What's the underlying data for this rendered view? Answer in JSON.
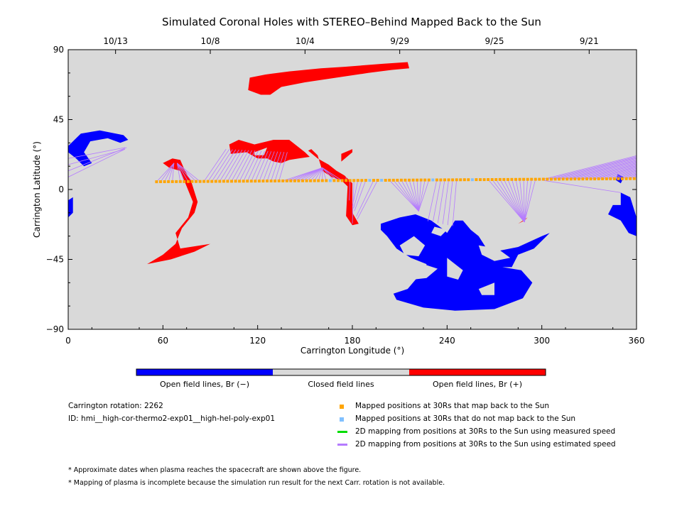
{
  "chart_data": {
    "type": "scatter",
    "title": "Simulated Coronal Holes with STEREO–Behind Mapped Back to the Sun",
    "xlabel": "Carrington Longitude (°)",
    "ylabel": "Carrington Latitude (°)",
    "xlim": [
      0,
      360
    ],
    "ylim": [
      -90,
      90
    ],
    "x_ticks": [
      0,
      60,
      120,
      180,
      240,
      300,
      360
    ],
    "y_ticks": [
      90,
      45,
      0,
      -45,
      -90
    ],
    "top_axis": {
      "dates": [
        "10/13",
        "10/8",
        "10/4",
        "9/29",
        "9/25",
        "9/21"
      ],
      "longitudes": [
        30,
        90,
        150,
        210,
        270,
        330
      ]
    },
    "colors": {
      "background": "#d9d9d9",
      "negative": "#0000ff",
      "positive": "#ff0000",
      "mapped": "#ffa500",
      "unmapped": "#80c0ff",
      "measured": "#00dd00",
      "estimated": "#b57bff"
    },
    "regions": {
      "positive": [
        [
          [
            115,
            72
          ],
          [
            125,
            74
          ],
          [
            140,
            76
          ],
          [
            160,
            78
          ],
          [
            175,
            79
          ],
          [
            200,
            81
          ],
          [
            215,
            82
          ],
          [
            216,
            78
          ],
          [
            205,
            77
          ],
          [
            190,
            75
          ],
          [
            170,
            72
          ],
          [
            150,
            69
          ],
          [
            135,
            66
          ],
          [
            128,
            61
          ],
          [
            122,
            61
          ],
          [
            114,
            64
          ]
        ],
        [
          [
            103,
            23
          ],
          [
            102,
            29
          ],
          [
            108,
            32
          ],
          [
            118,
            29
          ],
          [
            130,
            32
          ],
          [
            140,
            32
          ],
          [
            150,
            24
          ],
          [
            153,
            21
          ],
          [
            146,
            20
          ],
          [
            140,
            19
          ],
          [
            135,
            17
          ],
          [
            130,
            18
          ],
          [
            126,
            20
          ],
          [
            120,
            20
          ],
          [
            113,
            24
          ]
        ],
        [
          [
            152,
            25
          ],
          [
            158,
            20
          ],
          [
            165,
            16
          ],
          [
            170,
            12
          ],
          [
            175,
            9
          ],
          [
            180,
            4
          ],
          [
            180,
            -15
          ],
          [
            184,
            -22
          ],
          [
            180,
            -23
          ],
          [
            176,
            -17
          ],
          [
            177,
            2
          ],
          [
            173,
            6
          ],
          [
            167,
            8
          ],
          [
            161,
            12
          ],
          [
            158,
            22
          ],
          [
            154,
            26
          ]
        ],
        [
          [
            173,
            18
          ],
          [
            180,
            24
          ],
          [
            180,
            26
          ],
          [
            173,
            23
          ]
        ],
        [
          [
            60,
            17
          ],
          [
            66,
            20
          ],
          [
            71,
            19
          ],
          [
            74,
            12
          ],
          [
            78,
            5
          ],
          [
            82,
            -8
          ],
          [
            80,
            -15
          ],
          [
            72,
            -25
          ],
          [
            68,
            -35
          ],
          [
            60,
            -42
          ],
          [
            50,
            -48
          ],
          [
            65,
            -45
          ],
          [
            80,
            -40
          ],
          [
            90,
            -35
          ],
          [
            71,
            -38
          ],
          [
            68,
            -28
          ],
          [
            76,
            -18
          ],
          [
            79,
            -8
          ],
          [
            75,
            2
          ],
          [
            71,
            12
          ],
          [
            64,
            14
          ]
        ],
        [
          [
            285,
            -22
          ],
          [
            291,
            -18
          ],
          [
            289,
            -20
          ]
        ]
      ],
      "negative": [
        [
          [
            0,
            28
          ],
          [
            8,
            36
          ],
          [
            20,
            38
          ],
          [
            35,
            35
          ],
          [
            38,
            32
          ],
          [
            33,
            30
          ],
          [
            25,
            33
          ],
          [
            14,
            31
          ],
          [
            10,
            24
          ],
          [
            15,
            17
          ],
          [
            10,
            15
          ],
          [
            5,
            20
          ],
          [
            0,
            24
          ]
        ],
        [
          [
            0,
            -7
          ],
          [
            3,
            -5
          ],
          [
            3,
            -15
          ],
          [
            0,
            -18
          ]
        ],
        [
          [
            198,
            -22
          ],
          [
            210,
            -18
          ],
          [
            220,
            -16
          ],
          [
            230,
            -20
          ],
          [
            238,
            -26
          ],
          [
            240,
            -28
          ],
          [
            245,
            -20
          ],
          [
            250,
            -20
          ],
          [
            255,
            -26
          ],
          [
            260,
            -30
          ],
          [
            265,
            -38
          ],
          [
            270,
            -40
          ],
          [
            285,
            -37
          ],
          [
            300,
            -30
          ],
          [
            305,
            -28
          ],
          [
            295,
            -38
          ],
          [
            285,
            -42
          ],
          [
            281,
            -50
          ],
          [
            275,
            -50
          ],
          [
            287,
            -52
          ],
          [
            294,
            -60
          ],
          [
            288,
            -70
          ],
          [
            270,
            -77
          ],
          [
            245,
            -78
          ],
          [
            225,
            -76
          ],
          [
            208,
            -71
          ],
          [
            206,
            -67
          ],
          [
            215,
            -64
          ],
          [
            220,
            -58
          ],
          [
            226,
            -54
          ],
          [
            227,
            -48
          ],
          [
            217,
            -44
          ],
          [
            208,
            -38
          ],
          [
            202,
            -30
          ],
          [
            198,
            -26
          ]
        ],
        [
          [
            350,
            -10
          ],
          [
            345,
            -10
          ],
          [
            342,
            -16
          ],
          [
            350,
            -20
          ],
          [
            355,
            -28
          ],
          [
            360,
            -30
          ],
          [
            360,
            -18
          ],
          [
            356,
            -5
          ],
          [
            350,
            -2
          ]
        ],
        [
          [
            348,
            10
          ],
          [
            352,
            8
          ],
          [
            350,
            4
          ],
          [
            347,
            6
          ]
        ]
      ]
    },
    "holes": {
      "negative": [
        [
          [
            210,
            -36
          ],
          [
            219,
            -30
          ],
          [
            226,
            -36
          ],
          [
            222,
            -43
          ],
          [
            213,
            -42
          ]
        ],
        [
          [
            240,
            -44
          ],
          [
            250,
            -52
          ],
          [
            247,
            -58
          ],
          [
            240,
            -56
          ]
        ],
        [
          [
            225,
            -48
          ],
          [
            234,
            -51
          ],
          [
            227,
            -57
          ],
          [
            218,
            -58
          ],
          [
            216,
            -52
          ]
        ],
        [
          [
            260,
            -36
          ],
          [
            272,
            -38
          ],
          [
            280,
            -44
          ],
          [
            270,
            -46
          ],
          [
            262,
            -42
          ]
        ],
        [
          [
            260,
            -64
          ],
          [
            270,
            -60
          ],
          [
            270,
            -68
          ],
          [
            262,
            -68
          ]
        ],
        [
          [
            232,
            -24
          ],
          [
            240,
            -26
          ],
          [
            236,
            -30
          ],
          [
            230,
            -28
          ]
        ]
      ],
      "positive": [
        [
          [
            118,
            24
          ],
          [
            126,
            27
          ],
          [
            124,
            22
          ],
          [
            118,
            22
          ]
        ]
      ]
    },
    "mapping": {
      "lon_start": 56,
      "lon_end": 360,
      "step": 2.5,
      "lat_start": 5,
      "lat_end": 7,
      "unmapped_lons": [
        167,
        190,
        198,
        230,
        255
      ],
      "targets": [
        {
          "lon_min": 56,
          "lon_max": 68,
          "to": [
            67,
            17
          ]
        },
        {
          "lon_min": 70,
          "lon_max": 84,
          "to": [
            69,
            17
          ]
        },
        {
          "lon_min": 86,
          "lon_max": 135,
          "spread": [
            [
              100,
              26
            ],
            [
              140,
              24
            ]
          ]
        },
        {
          "lon_min": 136,
          "lon_max": 175,
          "to": [
            161,
            14
          ]
        },
        {
          "lon_min": 176,
          "lon_max": 181,
          "spread": [
            [
              176,
              8
            ],
            [
              180,
              -22
            ]
          ]
        },
        {
          "lon_min": 183,
          "lon_max": 200,
          "spread": [
            [
              180,
              -10
            ],
            [
              184,
              -22
            ]
          ]
        },
        {
          "lon_min": 202,
          "lon_max": 230,
          "to": [
            222,
            -14
          ]
        },
        {
          "lon_min": 232,
          "lon_max": 248,
          "spread": [
            [
              226,
              -20
            ],
            [
              246,
              -24
            ]
          ]
        },
        {
          "lon_min": 265,
          "lon_max": 297,
          "to": [
            289,
            -21
          ]
        },
        {
          "lon_min": 300,
          "lon_max": 360,
          "spread": [
            [
              360,
              22
            ],
            [
              360,
              8
            ]
          ]
        }
      ],
      "wrap_lines": [
        {
          "from": [
            0,
            20
          ],
          "to": [
            36,
            27
          ]
        },
        {
          "from": [
            0,
            16
          ],
          "to": [
            36,
            26
          ]
        },
        {
          "from": [
            0,
            12
          ],
          "to": [
            37,
            27
          ]
        },
        {
          "from": [
            0,
            8
          ],
          "to": [
            36,
            26
          ]
        },
        {
          "from": [
            300,
            6
          ],
          "to": [
            350,
            -2
          ]
        }
      ]
    },
    "colorbar": {
      "labels": [
        "Open field lines, Br (−)",
        "Closed field lines",
        "Open field lines, Br (+)"
      ]
    }
  },
  "info": {
    "rotation": "Carrington rotation: 2262",
    "id": "ID: hmi__high-cor-thermo2-exp01__high-hel-poly-exp01"
  },
  "legend": [
    {
      "label": "Mapped positions at 30Rs that map back to the Sun",
      "kind": "square",
      "color": "#ffa500"
    },
    {
      "label": "Mapped positions at 30Rs that do not map back to the Sun",
      "kind": "square",
      "color": "#80c0ff"
    },
    {
      "label": "2D mapping from positions at 30Rs to the Sun using measured speed",
      "kind": "line",
      "color": "#00dd00"
    },
    {
      "label": "2D mapping from positions at 30Rs to the Sun using estimated speed",
      "kind": "line",
      "color": "#b57bff"
    }
  ],
  "notes": [
    "* Approximate dates when plasma reaches the spacecraft are shown above the figure.",
    "* Mapping of plasma is incomplete because the simulation run result for the next Carr. rotation is not available."
  ]
}
